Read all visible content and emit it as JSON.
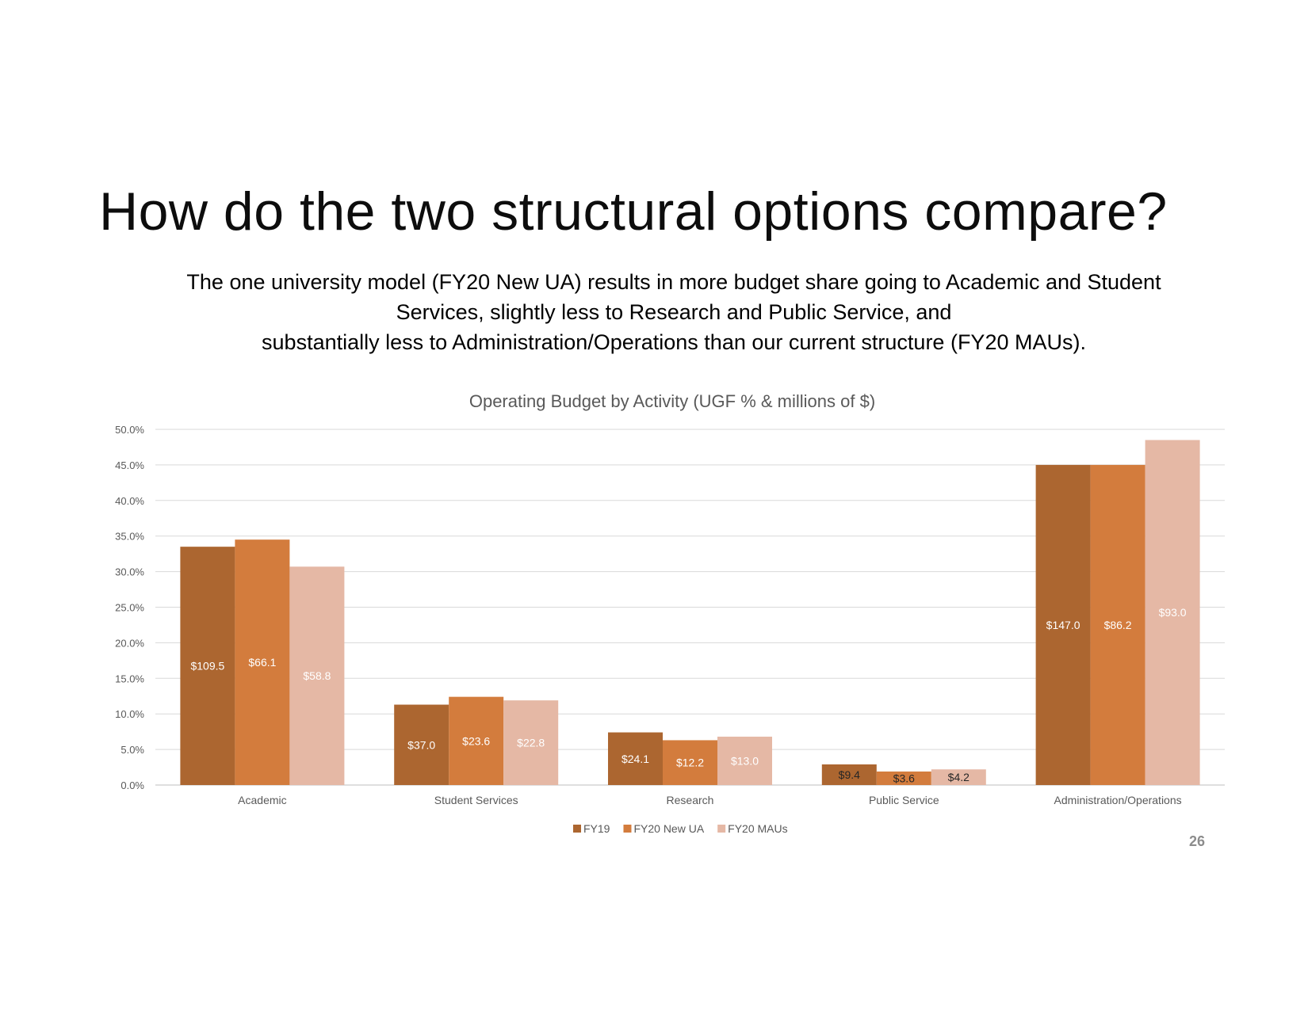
{
  "slide": {
    "title": "How do the two structural options compare?",
    "subtitle_lines": [
      "The one university model (FY20 New UA) results in more budget share going to Academic and Student",
      "Services, slightly less to Research and Public Service, and",
      "substantially less to Administration/Operations than our current structure (FY20 MAUs)."
    ],
    "page_number": "26"
  },
  "chart_data": {
    "type": "bar",
    "title": "Operating Budget by Activity (UGF % & millions of $)",
    "xlabel": "",
    "ylabel": "",
    "ylim": [
      0,
      50
    ],
    "yticks": [
      "0.0%",
      "5.0%",
      "10.0%",
      "15.0%",
      "20.0%",
      "25.0%",
      "30.0%",
      "35.0%",
      "40.0%",
      "45.0%",
      "50.0%"
    ],
    "grid": true,
    "legend_position": "bottom",
    "categories": [
      "Academic",
      "Student Services",
      "Research",
      "Public Service",
      "Administration/Operations"
    ],
    "series": [
      {
        "name": "FY19",
        "color": "#ac6630",
        "label_color": "#ffffff",
        "values": [
          33.5,
          11.3,
          7.4,
          2.9,
          45.0
        ],
        "labels": [
          "$109.5",
          "$37.0",
          "$24.1",
          "$9.4",
          "$147.0"
        ]
      },
      {
        "name": "FY20 New UA",
        "color": "#d37c3d",
        "label_color": "#ffffff",
        "values": [
          34.5,
          12.4,
          6.3,
          1.9,
          45.0
        ],
        "labels": [
          "$66.1",
          "$23.6",
          "$12.2",
          "$3.6",
          "$86.2"
        ]
      },
      {
        "name": "FY20 MAUs",
        "color": "#e5b8a5",
        "label_color": "#ffffff",
        "values": [
          30.7,
          11.9,
          6.8,
          2.2,
          48.5
        ],
        "labels": [
          "$58.8",
          "$22.8",
          "$13.0",
          "$4.2",
          "$93.0"
        ]
      }
    ]
  }
}
